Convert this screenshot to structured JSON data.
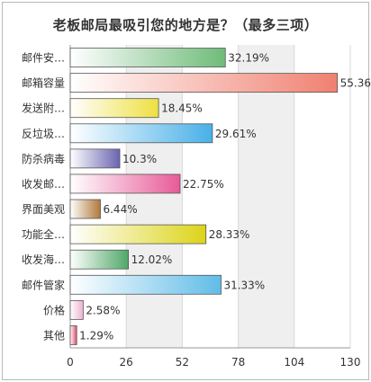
{
  "chart_data": {
    "type": "bar",
    "orientation": "horizontal",
    "title": "老板邮局最吸引您的地方是？（最多三项）",
    "categories": [
      "邮件安…",
      "邮箱容量",
      "发送附…",
      "反垃圾…",
      "防杀病毒",
      "收发邮…",
      "界面美观",
      "功能全…",
      "收发海…",
      "邮件管家",
      "价格",
      "其他"
    ],
    "values": [
      72,
      124,
      41,
      66,
      23,
      51,
      14,
      63,
      27,
      70,
      6,
      3
    ],
    "value_labels": [
      "32.19%",
      "55.36%",
      "18.45%",
      "29.61%",
      "10.3%",
      "22.75%",
      "6.44%",
      "28.33%",
      "12.02%",
      "31.33%",
      "2.58%",
      "1.29%"
    ],
    "xlim": [
      0,
      130
    ],
    "xticks": [
      "0",
      "26",
      "52",
      "78",
      "104",
      "130"
    ],
    "bar_colors": [
      "#6fbb79",
      "#f08070",
      "#eee040",
      "#48b0e8",
      "#6a64b2",
      "#e85a98",
      "#b07838",
      "#dcd418",
      "#4fa868",
      "#60bce8",
      "#f0b0d0",
      "#e04868"
    ],
    "grid": true
  }
}
